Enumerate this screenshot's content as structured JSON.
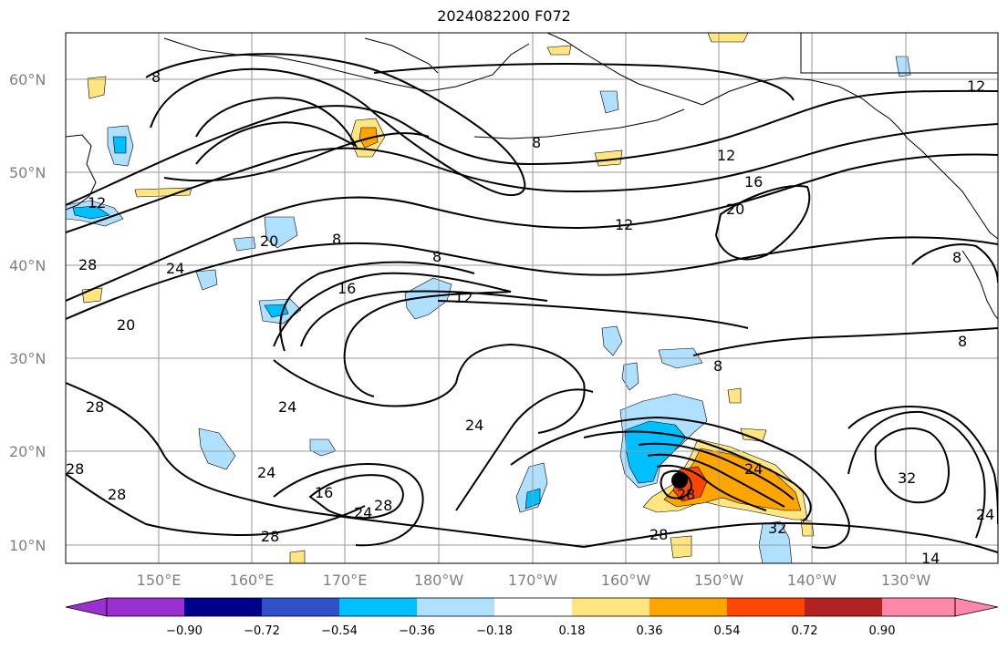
{
  "title": "2024082200 F072",
  "lat_labels": [
    "60°N",
    "50°N",
    "40°N",
    "30°N",
    "20°N",
    "10°N"
  ],
  "lon_labels": [
    "150°E",
    "160°E",
    "170°E",
    "180°W",
    "170°W",
    "160°W",
    "150°W",
    "140°W",
    "130°W"
  ],
  "colorbar": {
    "ticks": [
      "−0.90",
      "−0.72",
      "−0.54",
      "−0.36",
      "−0.18",
      "0.18",
      "0.36",
      "0.54",
      "0.72",
      "0.90"
    ],
    "colors": [
      "#9b30d0",
      "#00008b",
      "#3050c8",
      "#00bfff",
      "#b0e0ff",
      "#ffffff",
      "#ffe680",
      "#ffa500",
      "#ff4500",
      "#b22222",
      "#ff88aa"
    ]
  },
  "shading_colors": {
    "neg_strong": "#00bfff",
    "neg_weak": "#b0e0ff",
    "pos_weak": "#ffe680",
    "pos_mid": "#ffa500",
    "pos_strong": "#ff4500"
  },
  "contour_labels": [
    "8",
    "8",
    "8",
    "8",
    "8",
    "8",
    "8",
    "12",
    "12",
    "12",
    "12",
    "16",
    "16",
    "16",
    "20",
    "20",
    "20",
    "24",
    "24",
    "24",
    "24",
    "24",
    "24",
    "28",
    "28",
    "28",
    "28",
    "28",
    "28",
    "28",
    "28",
    "32",
    "32",
    "24",
    "14",
    "12"
  ],
  "storm_marker": "tropical cyclone center"
}
